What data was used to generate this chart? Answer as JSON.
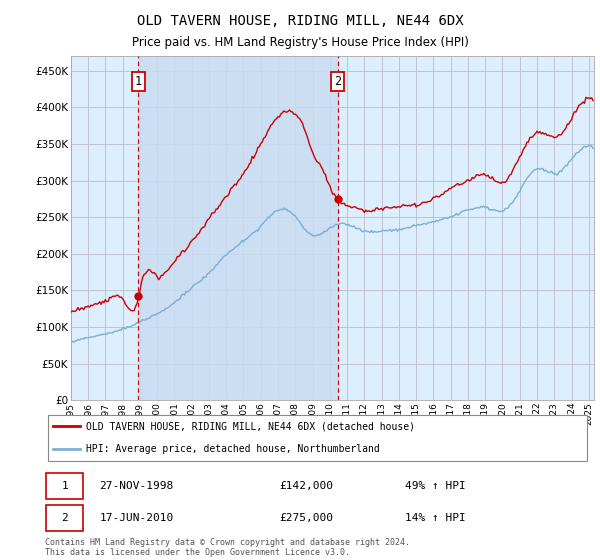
{
  "title": "OLD TAVERN HOUSE, RIDING MILL, NE44 6DX",
  "subtitle": "Price paid vs. HM Land Registry's House Price Index (HPI)",
  "ylim": [
    0,
    470000
  ],
  "xlim_start": 1995.0,
  "xlim_end": 2025.3,
  "sale1_date": "27-NOV-1998",
  "sale1_price": 142000,
  "sale1_hpi": "49%",
  "sale1_x": 1998.92,
  "sale2_date": "17-JUN-2010",
  "sale2_price": 275000,
  "sale2_hpi": "14%",
  "sale2_x": 2010.46,
  "legend_line1": "OLD TAVERN HOUSE, RIDING MILL, NE44 6DX (detached house)",
  "legend_line2": "HPI: Average price, detached house, Northumberland",
  "footnote": "Contains HM Land Registry data © Crown copyright and database right 2024.\nThis data is licensed under the Open Government Licence v3.0.",
  "red_color": "#cc0000",
  "blue_color": "#7aaed4",
  "grid_color": "#cccccc",
  "bg_color": "#ddeeff",
  "highlight_color": "#c8dcf0"
}
